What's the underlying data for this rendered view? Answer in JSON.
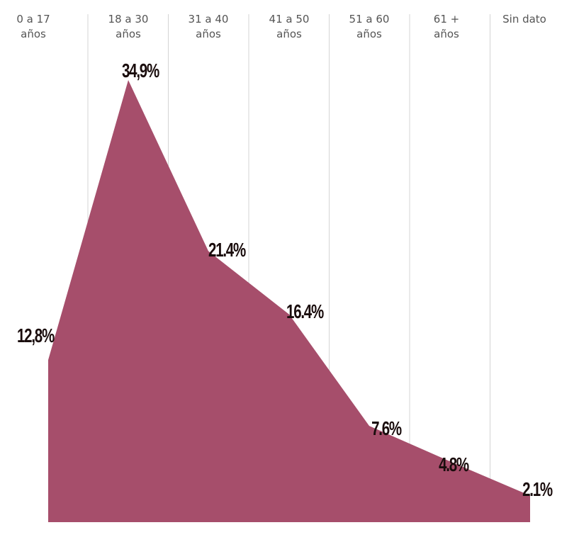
{
  "chart_data": {
    "type": "area",
    "categories": [
      {
        "line1": "0 a 17",
        "line2": "años"
      },
      {
        "line1": "18 a 30",
        "line2": "años"
      },
      {
        "line1": "31 a 40",
        "line2": "años"
      },
      {
        "line1": "41 a 50",
        "line2": "años"
      },
      {
        "line1": "51 a 60",
        "line2": "años"
      },
      {
        "line1": "61 +",
        "line2": "años"
      },
      {
        "line1": "Sin dato",
        "line2": ""
      }
    ],
    "values": [
      12.8,
      34.9,
      21.4,
      16.4,
      7.6,
      4.8,
      2.1
    ],
    "value_labels": [
      "12,8%",
      "34,9%",
      "21.4%",
      "16.4%",
      "7.6%",
      "4.8%",
      "2.1%"
    ],
    "ylim": [
      0,
      35
    ],
    "grid": true,
    "colors": {
      "area": "#a64e6b",
      "divider": "#d4d4d4",
      "value_text": "#1a0d0d",
      "category_text": "#555555"
    }
  }
}
